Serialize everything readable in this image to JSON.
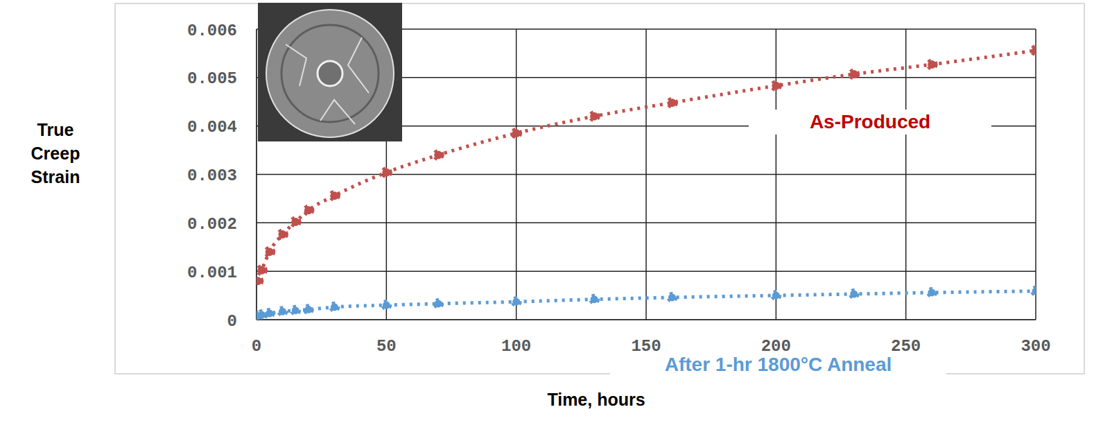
{
  "chart_data": {
    "type": "line",
    "x_label": "Time, hours",
    "y_label": "True Creep Strain",
    "x": [
      0.5,
      2,
      5,
      10,
      15,
      20,
      30,
      50,
      70,
      100,
      130,
      160,
      200,
      230,
      260,
      300
    ],
    "series": [
      {
        "name": "As-Produced",
        "color": "#c0504d",
        "marker": "circle",
        "line_style": "dotted",
        "values": [
          0.0008,
          0.00102,
          0.0014,
          0.00176,
          0.00202,
          0.00226,
          0.00256,
          0.00304,
          0.0034,
          0.00385,
          0.0042,
          0.00448,
          0.00483,
          0.00507,
          0.00527,
          0.00556
        ]
      },
      {
        "name": "After 1-hr 1800°C Anneal",
        "color": "#5b9bd5",
        "marker": "circle",
        "line_style": "dotted",
        "values": [
          7e-05,
          0.0001,
          0.00013,
          0.00017,
          0.00019,
          0.00021,
          0.00026,
          0.0003,
          0.00033,
          0.00037,
          0.00042,
          0.00046,
          0.0005,
          0.00053,
          0.00056,
          0.00059
        ]
      }
    ],
    "xlim": [
      0,
      300
    ],
    "xticks": [
      0,
      50,
      100,
      150,
      200,
      250,
      300
    ],
    "ylim": [
      0,
      0.006
    ],
    "yticks": [
      0,
      0.001,
      0.002,
      0.003,
      0.004,
      0.005,
      0.006
    ],
    "grid": true
  }
}
